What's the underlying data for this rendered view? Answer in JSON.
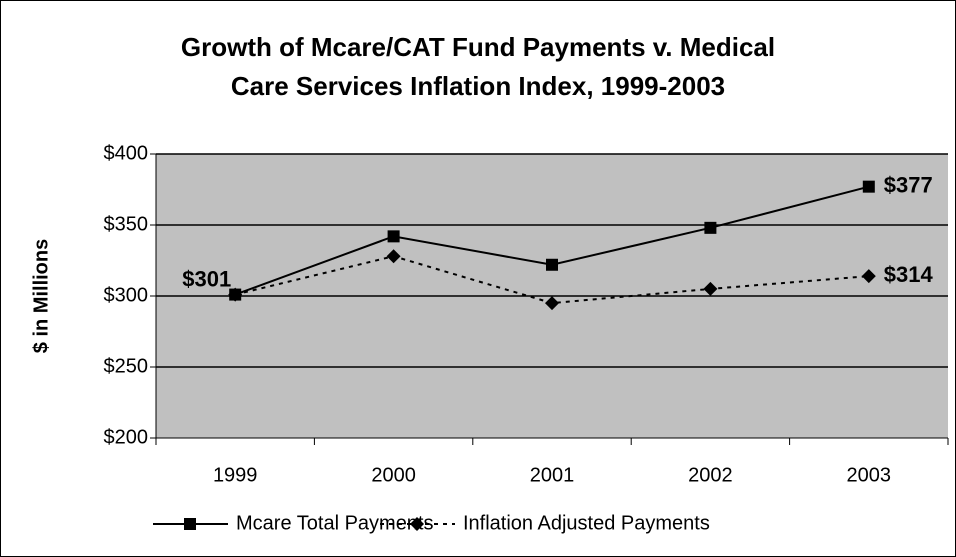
{
  "chart_data": {
    "type": "line",
    "title": [
      "Growth of Mcare/CAT Fund Payments v. Medical",
      "Care Services Inflation Index, 1999-2003"
    ],
    "ylabel": "$ in Millions",
    "categories": [
      "1999",
      "2000",
      "2001",
      "2002",
      "2003"
    ],
    "series": [
      {
        "name": "Mcare Total Payments",
        "color": "#000000",
        "marker": "square",
        "dash": "solid",
        "values": [
          301,
          342,
          322,
          348,
          377
        ],
        "value_labels": [
          "$301",
          null,
          null,
          null,
          "$377"
        ]
      },
      {
        "name": "Inflation Adjusted Payments",
        "color": "#000000",
        "marker": "diamond",
        "dash": "dotted",
        "values": [
          301,
          328,
          295,
          305,
          314
        ],
        "value_labels": [
          null,
          null,
          null,
          null,
          "$314"
        ]
      }
    ],
    "ylim": [
      200,
      400
    ],
    "yticks": [
      {
        "value": 200,
        "label": "$200"
      },
      {
        "value": 250,
        "label": "$250"
      },
      {
        "value": 300,
        "label": "$300"
      },
      {
        "value": 350,
        "label": "$350"
      },
      {
        "value": 400,
        "label": "$400"
      }
    ],
    "grid": true,
    "plot_color": "#c0c0c0",
    "legend": "bottom"
  }
}
